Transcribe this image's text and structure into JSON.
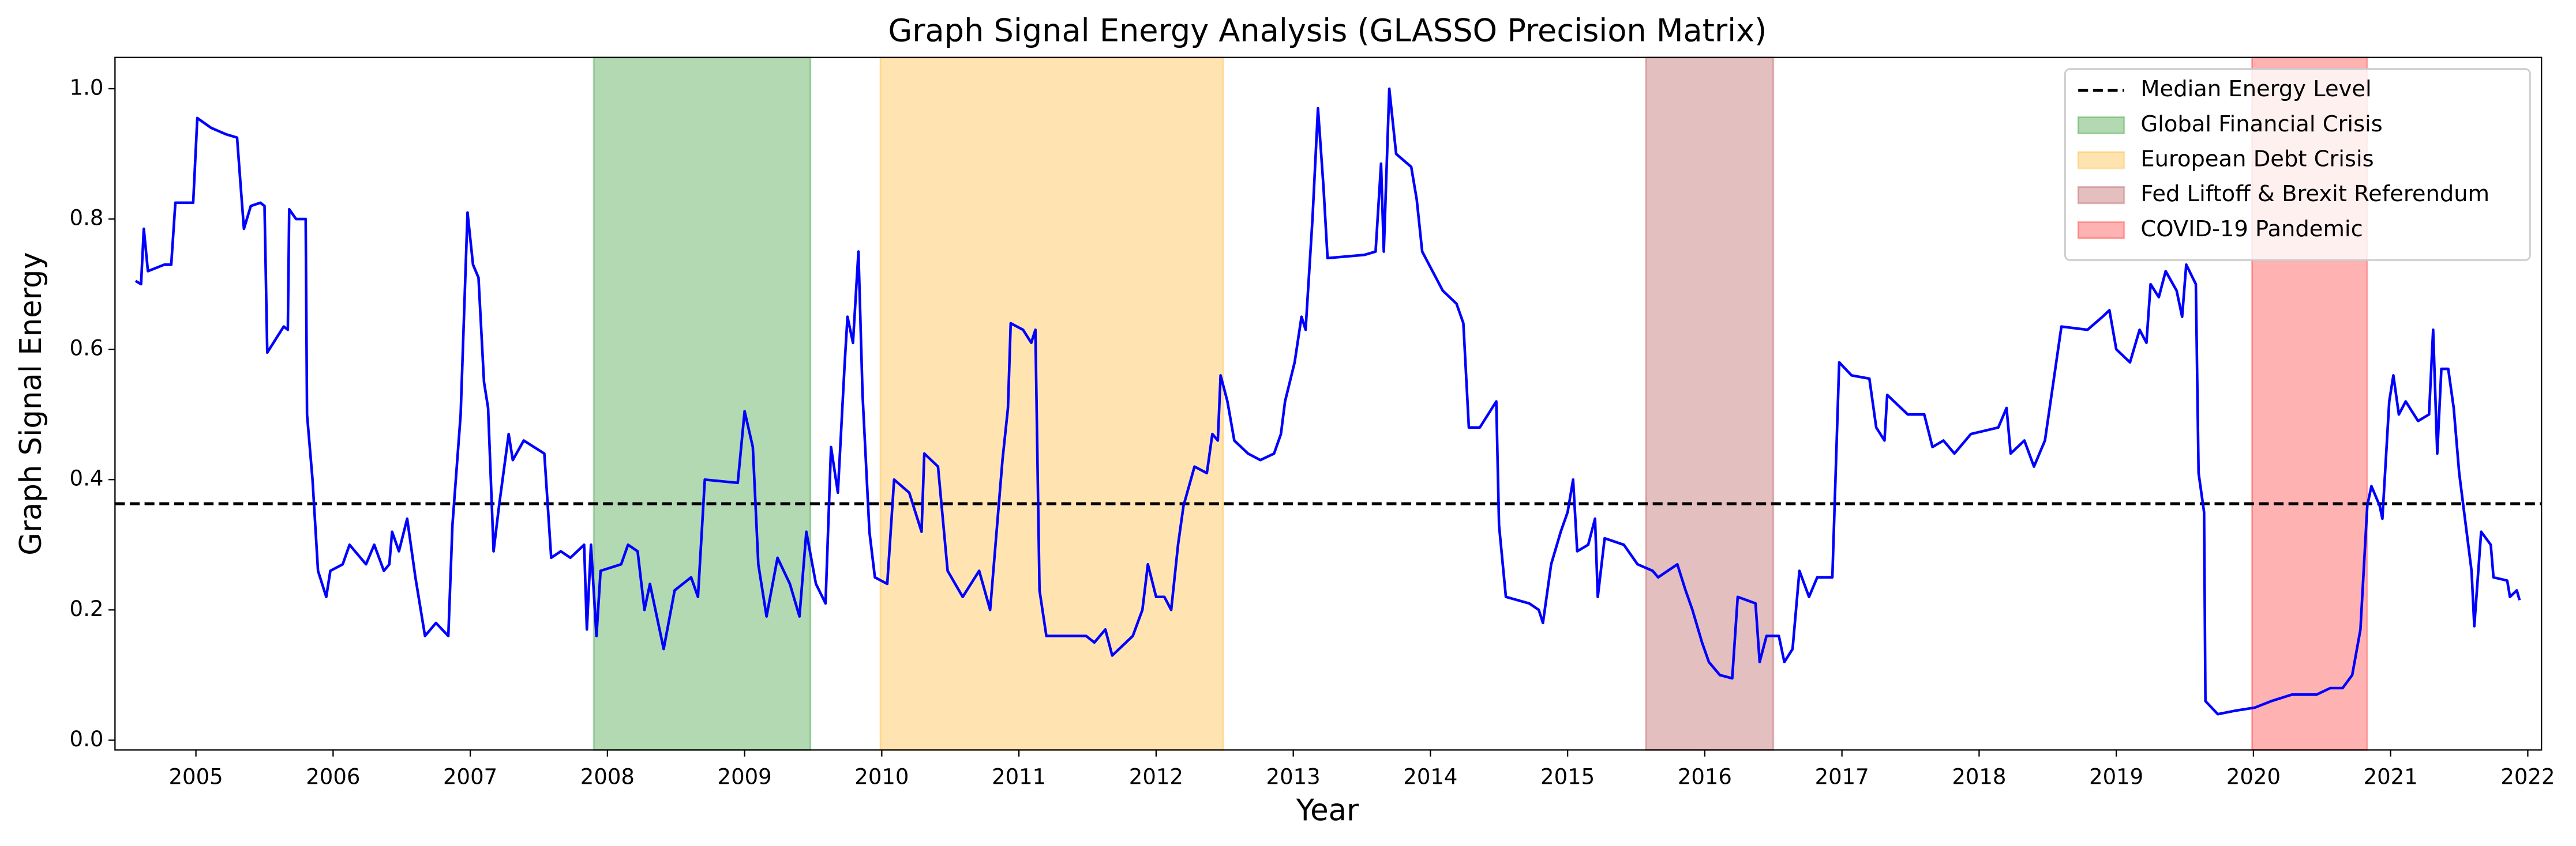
{
  "chart_data": {
    "type": "line",
    "title": "Graph Signal Energy Analysis (GLASSO Precision Matrix)",
    "xlabel": "Year",
    "ylabel": "Graph Signal Energy",
    "color": "#0000ff",
    "x": [
      2004.56,
      2004.6,
      2004.62,
      2004.65,
      2004.77,
      2004.82,
      2004.85,
      2004.98,
      2005.01,
      2005.11,
      2005.22,
      2005.3,
      2005.33,
      2005.35,
      2005.4,
      2005.47,
      2005.5,
      2005.52,
      2005.61,
      2005.64,
      2005.67,
      2005.68,
      2005.73,
      2005.8,
      2005.81,
      2005.85,
      2005.89,
      2005.95,
      2005.98,
      2006.07,
      2006.12,
      2006.24,
      2006.3,
      2006.37,
      2006.41,
      2006.43,
      2006.48,
      2006.54,
      2006.6,
      2006.67,
      2006.75,
      2006.84,
      2006.87,
      2006.93,
      2006.98,
      2007.02,
      2007.06,
      2007.1,
      2007.13,
      2007.17,
      2007.21,
      2007.28,
      2007.31,
      2007.39,
      2007.54,
      2007.59,
      2007.66,
      2007.73,
      2007.83,
      2007.85,
      2007.88,
      2007.92,
      2007.95,
      2008.1,
      2008.15,
      2008.22,
      2008.27,
      2008.31,
      2008.41,
      2008.49,
      2008.61,
      2008.66,
      2008.71,
      2008.95,
      2009.0,
      2009.06,
      2009.1,
      2009.16,
      2009.24,
      2009.33,
      2009.4,
      2009.45,
      2009.52,
      2009.59,
      2009.63,
      2009.68,
      2009.73,
      2009.75,
      2009.79,
      2009.83,
      2009.86,
      2009.91,
      2009.95,
      2010.04,
      2010.09,
      2010.2,
      2010.29,
      2010.31,
      2010.41,
      2010.48,
      2010.59,
      2010.71,
      2010.79,
      2010.88,
      2010.92,
      2010.94,
      2011.03,
      2011.09,
      2011.12,
      2011.15,
      2011.2,
      2011.49,
      2011.55,
      2011.63,
      2011.68,
      2011.83,
      2011.9,
      2011.94,
      2012.0,
      2012.06,
      2012.11,
      2012.16,
      2012.2,
      2012.28,
      2012.37,
      2012.41,
      2012.45,
      2012.47,
      2012.52,
      2012.57,
      2012.67,
      2012.76,
      2012.86,
      2012.91,
      2012.94,
      2013.01,
      2013.06,
      2013.09,
      2013.14,
      2013.18,
      2013.22,
      2013.25,
      2013.52,
      2013.6,
      2013.64,
      2013.66,
      2013.7,
      2013.75,
      2013.86,
      2013.9,
      2013.94,
      2014.09,
      2014.19,
      2014.24,
      2014.28,
      2014.36,
      2014.42,
      2014.48,
      2014.5,
      2014.55,
      2014.72,
      2014.79,
      2014.82,
      2014.88,
      2014.95,
      2015.0,
      2015.04,
      2015.07,
      2015.15,
      2015.2,
      2015.22,
      2015.27,
      2015.41,
      2015.51,
      2015.62,
      2015.66,
      2015.8,
      2015.86,
      2015.91,
      2015.98,
      2016.03,
      2016.11,
      2016.2,
      2016.24,
      2016.37,
      2016.4,
      2016.45,
      2016.54,
      2016.58,
      2016.64,
      2016.69,
      2016.76,
      2016.82,
      2016.93,
      2016.98,
      2017.07,
      2017.2,
      2017.25,
      2017.31,
      2017.33,
      2017.48,
      2017.6,
      2017.66,
      2017.74,
      2017.82,
      2017.94,
      2018.14,
      2018.2,
      2018.23,
      2018.33,
      2018.4,
      2018.48,
      2018.6,
      2018.79,
      2018.9,
      2018.95,
      2019.0,
      2019.1,
      2019.17,
      2019.22,
      2019.25,
      2019.31,
      2019.36,
      2019.44,
      2019.48,
      2019.51,
      2019.58,
      2019.6,
      2019.64,
      2019.65,
      2019.74,
      2019.86,
      2020.01,
      2020.13,
      2020.28,
      2020.46,
      2020.56,
      2020.65,
      2020.72,
      2020.78,
      2020.83,
      2020.86,
      2020.92,
      2020.94,
      2020.99,
      2021.02,
      2021.06,
      2021.11,
      2021.2,
      2021.28,
      2021.31,
      2021.34,
      2021.37,
      2021.42,
      2021.46,
      2021.5,
      2021.59,
      2021.61,
      2021.66,
      2021.73,
      2021.75,
      2021.85,
      2021.87,
      2021.92,
      2021.94
    ],
    "values": [
      0.705,
      0.7,
      0.785,
      0.72,
      0.73,
      0.73,
      0.825,
      0.825,
      0.955,
      0.94,
      0.93,
      0.925,
      0.84,
      0.785,
      0.82,
      0.825,
      0.82,
      0.595,
      0.625,
      0.635,
      0.63,
      0.815,
      0.8,
      0.8,
      0.5,
      0.4,
      0.26,
      0.22,
      0.26,
      0.27,
      0.3,
      0.27,
      0.3,
      0.26,
      0.27,
      0.32,
      0.29,
      0.34,
      0.25,
      0.16,
      0.18,
      0.16,
      0.33,
      0.5,
      0.81,
      0.73,
      0.71,
      0.55,
      0.51,
      0.29,
      0.36,
      0.47,
      0.43,
      0.46,
      0.44,
      0.28,
      0.29,
      0.28,
      0.3,
      0.17,
      0.3,
      0.16,
      0.26,
      0.27,
      0.3,
      0.29,
      0.2,
      0.24,
      0.14,
      0.23,
      0.25,
      0.22,
      0.4,
      0.395,
      0.505,
      0.45,
      0.27,
      0.19,
      0.28,
      0.24,
      0.19,
      0.32,
      0.24,
      0.21,
      0.45,
      0.38,
      0.58,
      0.65,
      0.61,
      0.75,
      0.53,
      0.32,
      0.25,
      0.24,
      0.4,
      0.38,
      0.32,
      0.44,
      0.42,
      0.26,
      0.22,
      0.26,
      0.2,
      0.43,
      0.51,
      0.64,
      0.63,
      0.61,
      0.63,
      0.23,
      0.16,
      0.16,
      0.15,
      0.17,
      0.13,
      0.16,
      0.2,
      0.27,
      0.22,
      0.22,
      0.2,
      0.3,
      0.36,
      0.42,
      0.41,
      0.47,
      0.46,
      0.56,
      0.52,
      0.46,
      0.44,
      0.43,
      0.44,
      0.47,
      0.52,
      0.58,
      0.65,
      0.63,
      0.8,
      0.97,
      0.85,
      0.74,
      0.745,
      0.75,
      0.885,
      0.75,
      1.0,
      0.9,
      0.88,
      0.83,
      0.75,
      0.69,
      0.67,
      0.64,
      0.48,
      0.48,
      0.5,
      0.52,
      0.33,
      0.22,
      0.21,
      0.2,
      0.18,
      0.27,
      0.32,
      0.35,
      0.4,
      0.29,
      0.3,
      0.34,
      0.22,
      0.31,
      0.3,
      0.27,
      0.26,
      0.25,
      0.27,
      0.23,
      0.2,
      0.15,
      0.12,
      0.1,
      0.095,
      0.22,
      0.21,
      0.12,
      0.16,
      0.16,
      0.12,
      0.14,
      0.26,
      0.22,
      0.25,
      0.25,
      0.58,
      0.56,
      0.555,
      0.48,
      0.46,
      0.53,
      0.5,
      0.5,
      0.45,
      0.46,
      0.44,
      0.47,
      0.48,
      0.51,
      0.44,
      0.46,
      0.42,
      0.46,
      0.635,
      0.63,
      0.65,
      0.66,
      0.6,
      0.58,
      0.63,
      0.61,
      0.7,
      0.68,
      0.72,
      0.69,
      0.65,
      0.73,
      0.7,
      0.41,
      0.35,
      0.06,
      0.04,
      0.045,
      0.05,
      0.06,
      0.07,
      0.07,
      0.08,
      0.08,
      0.1,
      0.17,
      0.36,
      0.39,
      0.36,
      0.34,
      0.52,
      0.56,
      0.5,
      0.52,
      0.49,
      0.5,
      0.63,
      0.44,
      0.57,
      0.57,
      0.51,
      0.41,
      0.26,
      0.175,
      0.32,
      0.3,
      0.25,
      0.245,
      0.22,
      0.23,
      0.215
    ],
    "hlines": [
      {
        "name": "Median Energy Level",
        "value": 0.363,
        "color": "#000000",
        "dashed": true
      }
    ],
    "spans": [
      {
        "name": "Global Financial Crisis",
        "start": 2007.9,
        "end": 2009.48,
        "color": "#008000",
        "alpha": 0.3
      },
      {
        "name": "European Debt Crisis",
        "start": 2009.99,
        "end": 2012.49,
        "color": "#ffa500",
        "alpha": 0.3
      },
      {
        "name": "Fed Liftoff & Brexit Referendum",
        "start": 2015.57,
        "end": 2016.5,
        "color": "#a52a2a",
        "alpha": 0.3
      },
      {
        "name": "COVID-19 Pandemic",
        "start": 2019.99,
        "end": 2020.83,
        "color": "#ff0000",
        "alpha": 0.3
      }
    ],
    "xlim": [
      2004.41,
      2022.1
    ],
    "ylim": [
      -0.015,
      1.048
    ],
    "xticks": [
      2005,
      2006,
      2007,
      2008,
      2009,
      2010,
      2011,
      2012,
      2013,
      2014,
      2015,
      2016,
      2017,
      2018,
      2019,
      2020,
      2021,
      2022
    ],
    "yticks": [
      {
        "value": 0,
        "label": "0.0"
      },
      {
        "value": 0.2,
        "label": "0.2"
      },
      {
        "value": 0.4,
        "label": "0.4"
      },
      {
        "value": 0.6,
        "label": "0.6"
      },
      {
        "value": 0.8,
        "label": "0.8"
      },
      {
        "value": 1.0,
        "label": "1.0"
      }
    ],
    "legend": "upper right"
  }
}
